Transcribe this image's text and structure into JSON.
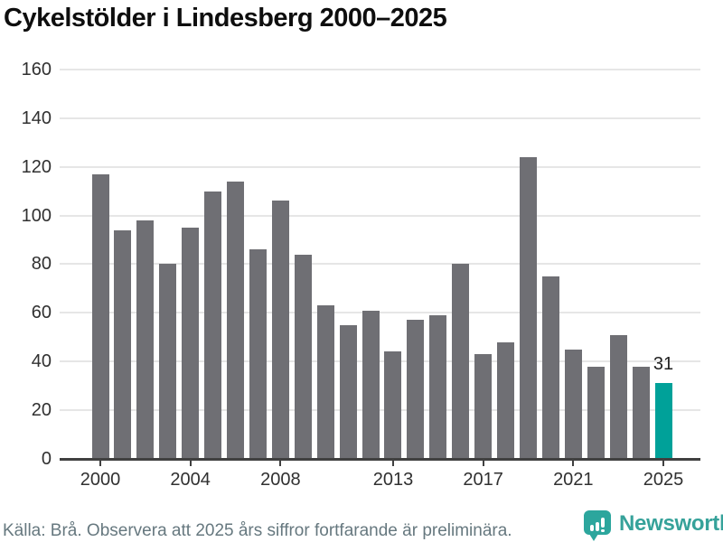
{
  "title": "Cykelstölder i Lindesberg 2000–2025",
  "footer": {
    "source_note": "Källa: Brå. Observera att 2025 års siffror fortfarande är preliminära."
  },
  "branding": {
    "name": "Newsworthy"
  },
  "colors": {
    "bar": "#6f6f74",
    "highlight_bar": "#00a199",
    "gridline": "#e6e6e6",
    "axis": "#404040",
    "title_text": "#0e0e0e",
    "tick_label_text": "#303030",
    "annotation_text": "#1f1f1f",
    "footer_text": "#66787f",
    "logo_teal": "#2ca69d"
  },
  "chart_data": {
    "type": "bar",
    "title": "Cykelstölder i Lindesberg 2000–2025",
    "categories": [
      2000,
      2001,
      2002,
      2003,
      2004,
      2005,
      2006,
      2007,
      2008,
      2009,
      2010,
      2011,
      2012,
      2013,
      2014,
      2015,
      2016,
      2017,
      2018,
      2019,
      2020,
      2021,
      2022,
      2023,
      2024,
      2025
    ],
    "values": [
      117,
      94,
      98,
      80,
      95,
      110,
      114,
      86,
      106,
      84,
      63,
      55,
      61,
      44,
      57,
      59,
      80,
      43,
      48,
      124,
      75,
      45,
      38,
      51,
      38,
      31
    ],
    "highlight_index": 25,
    "annotation": {
      "index": 25,
      "text": "31"
    },
    "xlabel": "",
    "ylabel": "",
    "ylim": [
      0,
      160
    ],
    "yticks": [
      0,
      20,
      40,
      60,
      80,
      100,
      120,
      140,
      160
    ],
    "xtick_years": [
      2000,
      2004,
      2008,
      2013,
      2017,
      2021,
      2025
    ],
    "grid": "horizontal",
    "legend": "none"
  }
}
